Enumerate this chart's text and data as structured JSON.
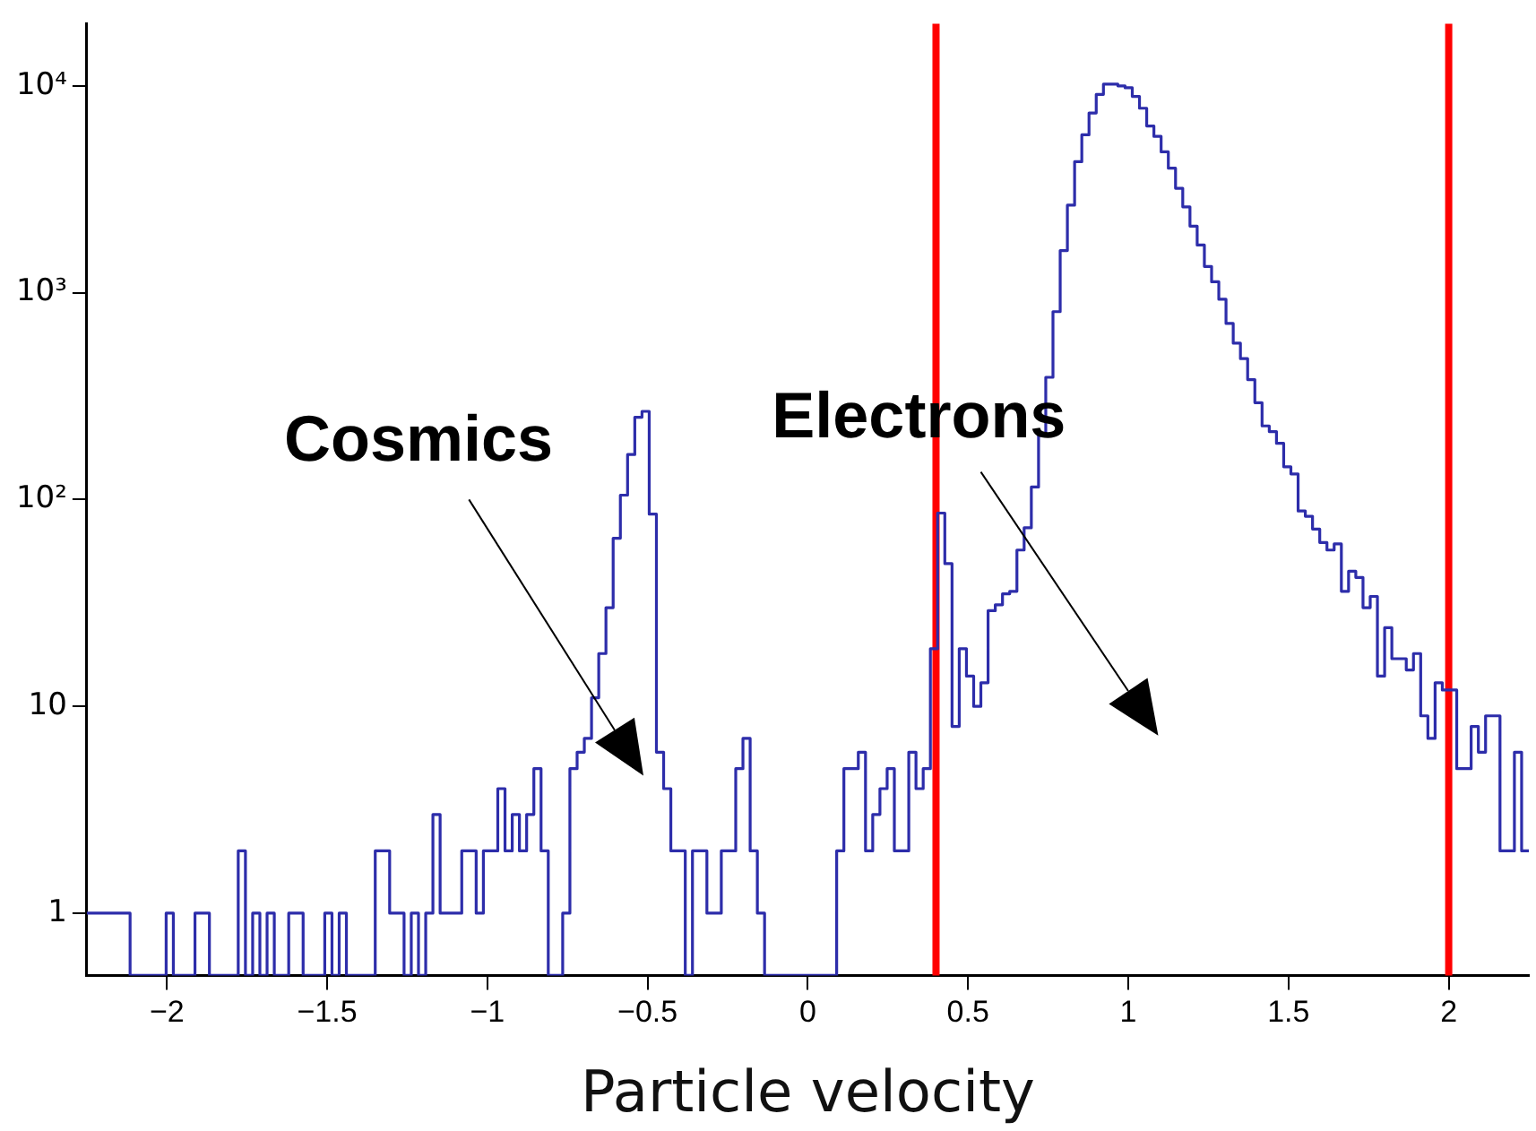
{
  "chart_data": {
    "type": "histogram",
    "xlabel": "Particle velocity",
    "bins": [
      -2.25,
      -2.2275,
      -2.205,
      -2.1825,
      -2.16,
      -2.1375,
      -2.115,
      -2.0925,
      -2.07,
      -2.0475,
      -2.025,
      -2.0025,
      -1.98,
      -1.9575,
      -1.935,
      -1.9125,
      -1.89,
      -1.8675,
      -1.845,
      -1.8225,
      -1.8,
      -1.7775,
      -1.755,
      -1.7325,
      -1.71,
      -1.6875,
      -1.665,
      -1.6425,
      -1.62,
      -1.5975,
      -1.575,
      -1.5525,
      -1.53,
      -1.5075,
      -1.485,
      -1.4625,
      -1.44,
      -1.4175,
      -1.395,
      -1.3725,
      -1.35,
      -1.3275,
      -1.305,
      -1.2825,
      -1.26,
      -1.2375,
      -1.215,
      -1.1925,
      -1.17,
      -1.1475,
      -1.125,
      -1.1025,
      -1.08,
      -1.0575,
      -1.035,
      -1.0125,
      -0.99,
      -0.9675,
      -0.945,
      -0.9225,
      -0.9,
      -0.8775,
      -0.855,
      -0.8325,
      -0.81,
      -0.7875,
      -0.765,
      -0.7425,
      -0.72,
      -0.6975,
      -0.675,
      -0.6525,
      -0.63,
      -0.6075,
      -0.585,
      -0.5625,
      -0.54,
      -0.5175,
      -0.495,
      -0.4725,
      -0.45,
      -0.4275,
      -0.405,
      -0.3825,
      -0.36,
      -0.3375,
      -0.315,
      -0.2925,
      -0.27,
      -0.2475,
      -0.225,
      -0.2025,
      -0.18,
      -0.1575,
      -0.135,
      -0.1125,
      -0.09,
      -0.0675,
      -0.045,
      -0.0225,
      0,
      0.0225,
      0.045,
      0.0675,
      0.09,
      0.1125,
      0.135,
      0.1575,
      0.18,
      0.2025,
      0.225,
      0.2475,
      0.27,
      0.2925,
      0.315,
      0.3375,
      0.36,
      0.3825,
      0.405,
      0.4275,
      0.45,
      0.4725,
      0.495,
      0.5175,
      0.54,
      0.5625,
      0.585,
      0.6075,
      0.63,
      0.6525,
      0.675,
      0.6975,
      0.72,
      0.7425,
      0.765,
      0.7875,
      0.81,
      0.8325,
      0.855,
      0.8775,
      0.9,
      0.9225,
      0.945,
      0.9675,
      0.99,
      1.0125,
      1.035,
      1.0575,
      1.08,
      1.1025,
      1.125,
      1.1475,
      1.17,
      1.1925,
      1.215,
      1.2375,
      1.26,
      1.2825,
      1.305,
      1.3275,
      1.35,
      1.3725,
      1.395,
      1.4175,
      1.44,
      1.4625,
      1.485,
      1.5075,
      1.53,
      1.5525,
      1.575,
      1.5975,
      1.62,
      1.6425,
      1.665,
      1.6875,
      1.71,
      1.7325,
      1.755,
      1.7775,
      1.8,
      1.8225,
      1.845,
      1.8675,
      1.89,
      1.9125,
      1.935,
      1.9575,
      1.98,
      2.0025,
      2.025,
      2.0475,
      2.07,
      2.0925,
      2.115,
      2.1375,
      2.16,
      2.1825,
      2.205,
      2.2275,
      2.25
    ],
    "values": [
      1,
      1,
      1,
      1,
      1,
      1,
      null,
      null,
      null,
      null,
      null,
      1,
      null,
      null,
      null,
      1,
      1,
      null,
      null,
      null,
      null,
      2,
      null,
      1,
      null,
      1,
      null,
      null,
      1,
      1,
      null,
      null,
      null,
      1,
      null,
      1,
      null,
      null,
      null,
      null,
      2,
      2,
      1,
      1,
      null,
      1,
      null,
      1,
      3,
      1,
      1,
      1,
      2,
      2,
      1,
      2,
      2,
      4,
      2,
      3,
      2,
      3,
      5,
      2,
      null,
      null,
      1,
      5,
      6,
      7,
      11,
      18,
      30,
      65,
      105,
      165,
      250,
      267,
      85,
      6,
      4,
      2,
      2,
      null,
      2,
      2,
      1,
      1,
      2,
      2,
      5,
      7,
      2,
      1,
      null,
      null,
      null,
      null,
      null,
      null,
      null,
      null,
      null,
      null,
      2,
      5,
      5,
      6,
      2,
      3,
      4,
      5,
      2,
      2,
      6,
      4,
      5,
      19,
      86,
      49,
      8,
      19,
      14,
      10,
      13,
      29,
      31,
      35,
      36,
      57,
      73,
      115,
      204,
      390,
      810,
      1600,
      2650,
      4300,
      5800,
      7400,
      9100,
      10200,
      10200,
      10000,
      9800,
      8900,
      7800,
      6400,
      5700,
      4800,
      4000,
      3200,
      2600,
      2100,
      1700,
      1340,
      1130,
      930,
      710,
      570,
      480,
      380,
      294,
      227,
      213,
      187,
      144,
      133,
      88,
      83,
      72,
      62,
      57,
      61,
      36,
      45,
      42,
      30,
      34,
      14,
      24,
      17,
      17,
      15,
      18,
      9,
      7,
      13,
      12,
      12,
      5,
      5,
      8,
      6,
      9,
      9,
      2,
      2,
      6,
      2
    ],
    "color": "#2d2daa",
    "xlim": [
      -2.25,
      2.25
    ],
    "xticks": [
      {
        "value": -2,
        "label": "−2"
      },
      {
        "value": -1.5,
        "label": "−1.5"
      },
      {
        "value": -1,
        "label": "−1"
      },
      {
        "value": -0.5,
        "label": "−0.5"
      },
      0,
      0.5,
      1,
      1.5,
      2
    ],
    "ylim": [
      0.5,
      20000
    ],
    "yticks": [
      1,
      10,
      {
        "value": 100,
        "label": "10²"
      },
      {
        "value": 1000,
        "label": "10³"
      },
      {
        "value": 10000,
        "label": "10⁴"
      }
    ],
    "log": "y",
    "ref_lines": [
      {
        "axis": "x",
        "value": 0.4,
        "color": "#ff0000"
      },
      {
        "axis": "x",
        "value": 2,
        "color": "#ff0000"
      }
    ],
    "annotations": [
      "Cosmics",
      "Electrons"
    ]
  }
}
